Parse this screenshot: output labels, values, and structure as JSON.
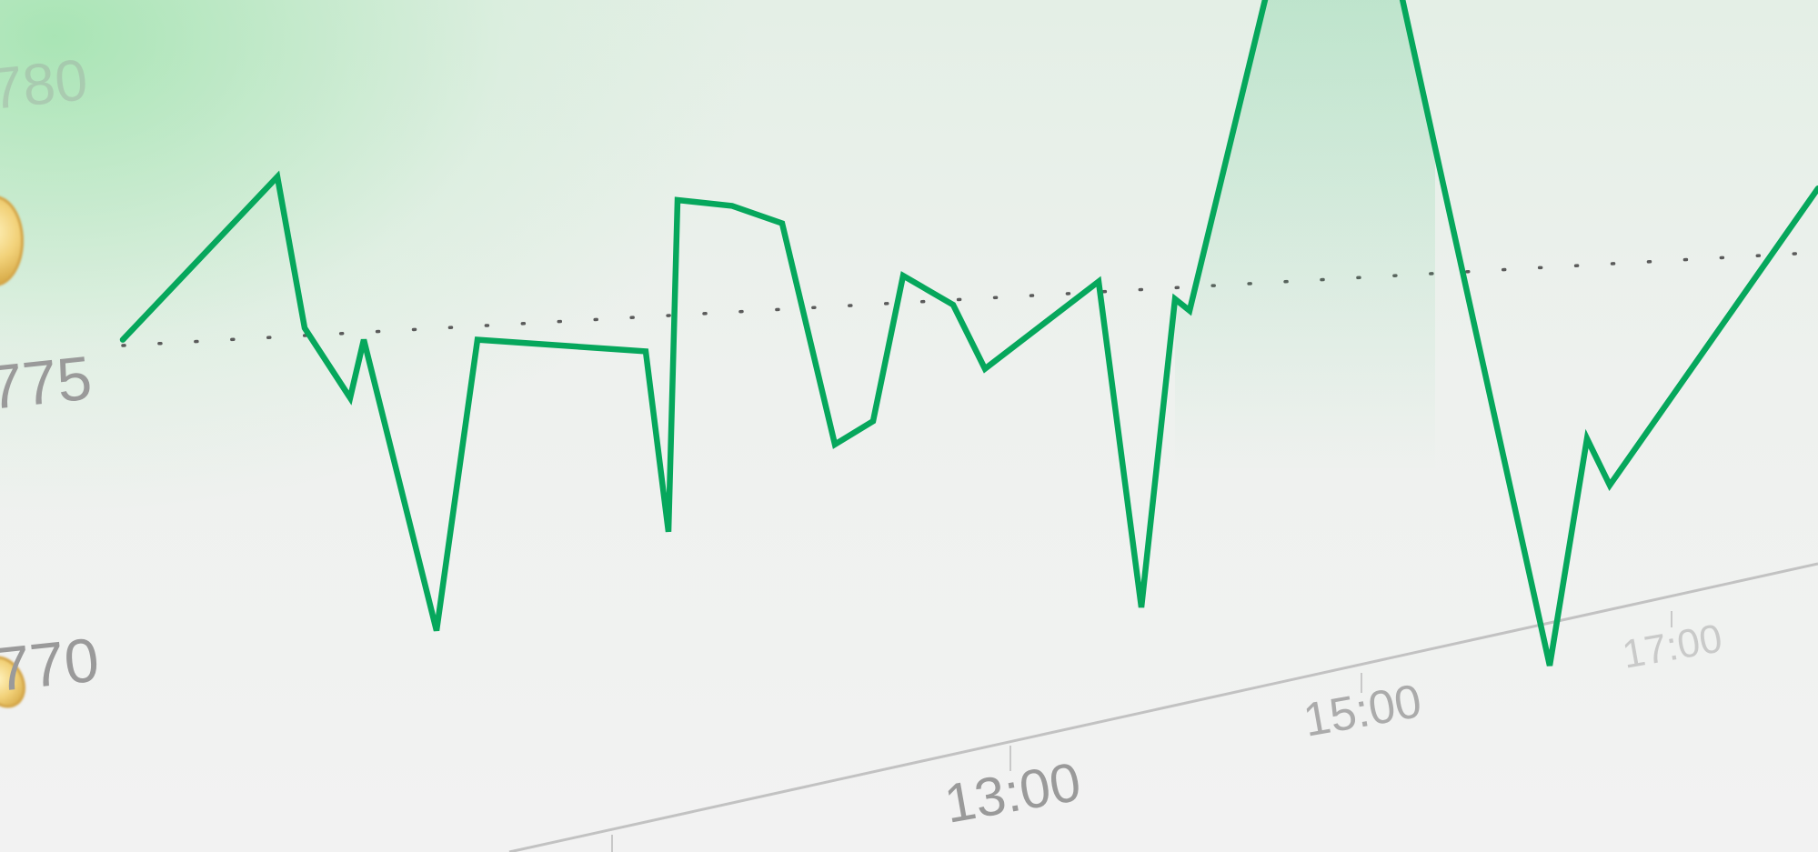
{
  "chart_data": {
    "type": "line",
    "title": "",
    "xlabel": "",
    "ylabel": "",
    "y_tick_labels": [
      "780",
      "775",
      "770"
    ],
    "x_tick_labels": [
      "13:00",
      "15:00",
      "17:00"
    ],
    "grid": false,
    "line_color": "#06a75c",
    "reference_line_color": "#5a5a5a",
    "series": [
      {
        "values": [
          775.1,
          777.9,
          775.3,
          774.1,
          775.1,
          770.1,
          775.1,
          774.9,
          771.8,
          777.5,
          777.4,
          777.1,
          773.3,
          773.7,
          776.2,
          775.7,
          774.6,
          776.1,
          770.5,
          775.8,
          775.6,
          783.0,
          782.3,
          778.4,
          769.5,
          773.4,
          772.6,
          777.7
        ]
      }
    ],
    "reference_series": {
      "style": "dotted",
      "values": [
        775.0,
        776.6
      ]
    }
  },
  "icons": {
    "coin_top": "gold-coin-icon",
    "coin_bottom": "gold-coin-icon"
  }
}
